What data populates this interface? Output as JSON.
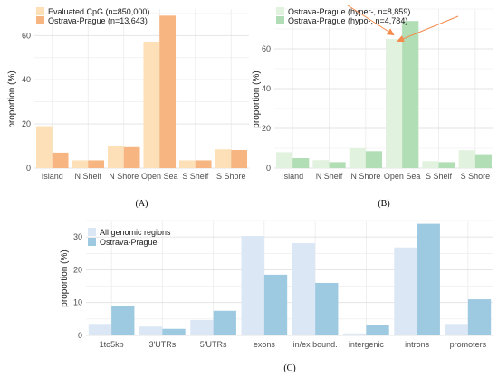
{
  "colors": {
    "grid": "#ebebeb",
    "arrow": "#f58b4c"
  },
  "chart_data": [
    {
      "panel": "(A)",
      "type": "bar",
      "ylabel": "proportion (%)",
      "yticks": [
        "0",
        "20",
        "40",
        "60"
      ],
      "ylim": [
        0,
        72
      ],
      "categories": [
        "Island",
        "N Shelf",
        "N Shore",
        "Open Sea",
        "S Shelf",
        "S Shore"
      ],
      "legend": "top-left",
      "series": [
        {
          "name": "Evaluated CpG (n=850,000)",
          "color": "#fddfb8",
          "values": [
            19,
            3.5,
            10,
            57,
            3.5,
            8.5
          ]
        },
        {
          "name": "Ostrava-Prague (n=13,643)",
          "color": "#f7b681",
          "values": [
            7,
            3.5,
            9.5,
            69,
            3.5,
            8.2
          ]
        }
      ]
    },
    {
      "panel": "(B)",
      "type": "bar",
      "ylabel": "proportion (%)",
      "yticks": [
        "0",
        "20",
        "40",
        "60"
      ],
      "ylim": [
        0,
        80
      ],
      "categories": [
        "Island",
        "N Shelf",
        "N Shore",
        "Open Sea",
        "S Shelf",
        "S Shore"
      ],
      "legend": "top-left",
      "series": [
        {
          "name": "Ostrava-Prague (hyper-, n=8,859)",
          "color": "#e1f2df",
          "values": [
            8,
            4,
            10,
            65,
            3.5,
            9
          ]
        },
        {
          "name": "Ostrava-Prague (hypo-, n=4,784)",
          "color": "#b2deb6",
          "values": [
            5,
            3,
            8.5,
            74,
            3,
            7
          ]
        }
      ]
    },
    {
      "panel": "(C)",
      "type": "bar",
      "ylabel": "proportion (%)",
      "yticks": [
        "0",
        "10",
        "20",
        "30"
      ],
      "ylim": [
        0,
        35
      ],
      "categories": [
        "1to5kb",
        "3'UTRs",
        "5'UTRs",
        "exons",
        "in/ex bound.",
        "intergenic",
        "introns",
        "promoters"
      ],
      "legend": "top-left",
      "series": [
        {
          "name": "All genomic regions",
          "color": "#dbe7f5",
          "values": [
            3.5,
            2.7,
            4.7,
            30.3,
            28.1,
            0.6,
            26.8,
            3.5
          ]
        },
        {
          "name": "Ostrava-Prague",
          "color": "#9ecae1",
          "values": [
            8.9,
            2,
            7.5,
            18.5,
            16,
            3.2,
            34,
            11
          ]
        }
      ]
    }
  ]
}
